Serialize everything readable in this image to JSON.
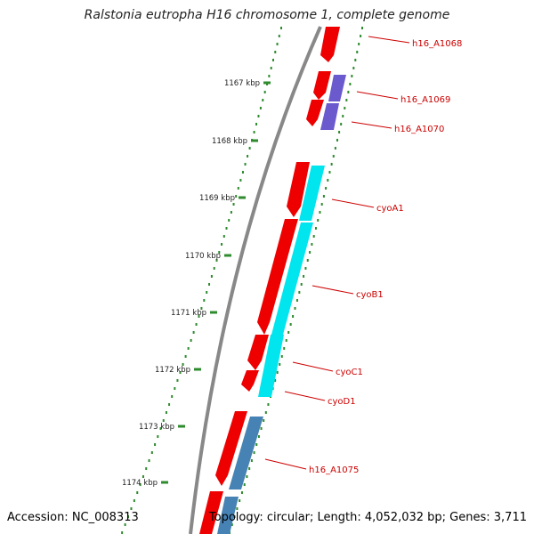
{
  "title": "Ralstonia eutropha H16 chromosome 1, complete genome",
  "footer": {
    "accession": "Accession: NC_008313",
    "topology": "Topology: circular; Length: 4,052,032 bp; Genes: 3,711"
  },
  "colors": {
    "backbone": "#888888",
    "forward_cds": "#ee0000",
    "h16_A1069_A1070": "#6a5acd",
    "cyo_operon": "#00e5ee",
    "h16_A1075": "#4682b4",
    "ticks": "#2e8b2e",
    "label_line": "#cc0000"
  },
  "ticks": [
    {
      "label": "1167 kbp"
    },
    {
      "label": "1168 kbp"
    },
    {
      "label": "1169 kbp"
    },
    {
      "label": "1170 kbp"
    },
    {
      "label": "1171 kbp"
    },
    {
      "label": "1172 kbp"
    },
    {
      "label": "1173 kbp"
    },
    {
      "label": "1174 kbp"
    }
  ],
  "genes": [
    {
      "label": "h16_A1068"
    },
    {
      "label": "h16_A1069"
    },
    {
      "label": "h16_A1070"
    },
    {
      "label": "cyoA1"
    },
    {
      "label": "cyoB1"
    },
    {
      "label": "cyoC1"
    },
    {
      "label": "cyoD1"
    },
    {
      "label": "h16_A1075"
    }
  ]
}
